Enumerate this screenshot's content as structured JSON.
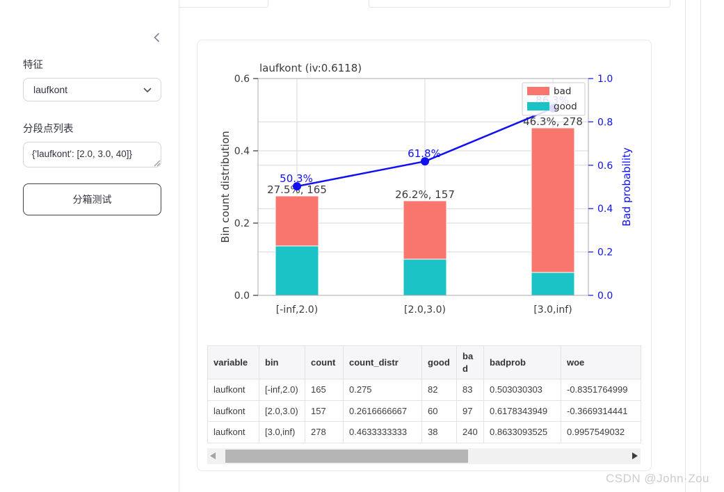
{
  "sidebar": {
    "feature_label": "特征",
    "feature_select": {
      "value": "laufkont"
    },
    "breaks_label": "分段点列表",
    "breaks_input": {
      "value": "{'laufkont': [2.0, 3.0, 40]}"
    },
    "test_button_label": "分箱测试"
  },
  "chart_data": {
    "type": "bar",
    "subtype": "stacked bars with overlaid line on secondary axis",
    "title": "laufkont  (iv:0.6118)",
    "categories": [
      "[-inf,2.0)",
      "[2.0,3.0)",
      "[3.0,inf)"
    ],
    "series": [
      {
        "name": "good",
        "color": "#1bc3c6",
        "values": [
          0.1366667,
          0.1,
          0.0633333
        ]
      },
      {
        "name": "bad",
        "color": "#f8766d",
        "values": [
          0.1383333,
          0.1616667,
          0.4
        ]
      }
    ],
    "line_series": {
      "name": "badprob",
      "color": "#1010f0",
      "values": [
        0.503,
        0.618,
        0.863
      ]
    },
    "bar_labels": [
      "27.5%, 165",
      "26.2%, 157",
      "46.3%, 278"
    ],
    "point_labels": [
      "50.3%",
      "61.8%",
      "86.3%"
    ],
    "ylabel_left": "Bin count distribution",
    "ylabel_right": "Bad probability",
    "ylim_left": [
      0,
      0.6
    ],
    "ylim_right": [
      0,
      1.0
    ],
    "yticks_left": [
      "0.0",
      "0.2",
      "0.4",
      "0.6"
    ],
    "yticks_right": [
      "0.0",
      "0.2",
      "0.4",
      "0.6",
      "0.8",
      "1.0"
    ],
    "grid": true,
    "legend_position": "top-right",
    "legend": [
      {
        "label": "bad",
        "color": "#f8766d"
      },
      {
        "label": "good",
        "color": "#1bc3c6"
      }
    ]
  },
  "table": {
    "columns": [
      "variable",
      "bin",
      "count",
      "count_distr",
      "good",
      "bad",
      "badprob",
      "woe"
    ],
    "rows": [
      [
        "laufkont",
        "[-inf,2.0)",
        "165",
        "0.275",
        "82",
        "83",
        "0.503030303",
        "-0.8351764999"
      ],
      [
        "laufkont",
        "[2.0,3.0)",
        "157",
        "0.2616666667",
        "60",
        "97",
        "0.6178343949",
        "-0.3669314441"
      ],
      [
        "laufkont",
        "[3.0,inf)",
        "278",
        "0.4633333333",
        "38",
        "240",
        "0.8633093525",
        "0.9957549032"
      ]
    ]
  },
  "watermark": "CSDN @John·Zou"
}
